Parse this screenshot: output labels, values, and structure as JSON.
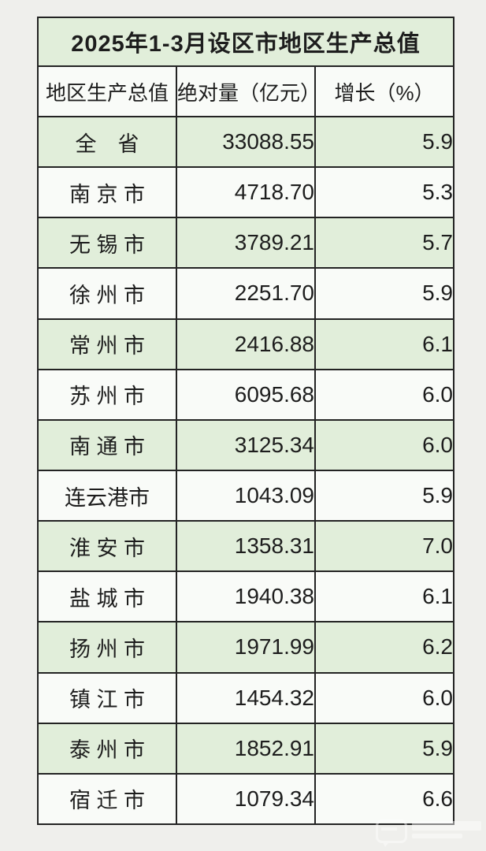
{
  "table": {
    "title": "2025年1-3月设区市地区生产总值",
    "columns": [
      "地区生产总值",
      "绝对量（亿元）",
      "增长（%）"
    ],
    "rows": [
      {
        "region": "全　省",
        "value": "33088.55",
        "growth": "5.9"
      },
      {
        "region": "南 京 市",
        "value": "4718.70",
        "growth": "5.3"
      },
      {
        "region": "无 锡 市",
        "value": "3789.21",
        "growth": "5.7"
      },
      {
        "region": "徐 州 市",
        "value": "2251.70",
        "growth": "5.9"
      },
      {
        "region": "常 州 市",
        "value": "2416.88",
        "growth": "6.1"
      },
      {
        "region": "苏 州 市",
        "value": "6095.68",
        "growth": "6.0"
      },
      {
        "region": "南 通 市",
        "value": "3125.34",
        "growth": "6.0"
      },
      {
        "region": "连云港市",
        "value": "1043.09",
        "growth": "5.9"
      },
      {
        "region": "淮 安 市",
        "value": "1358.31",
        "growth": "7.0"
      },
      {
        "region": "盐 城 市",
        "value": "1940.38",
        "growth": "6.1"
      },
      {
        "region": "扬 州 市",
        "value": "1971.99",
        "growth": "6.2"
      },
      {
        "region": "镇 江 市",
        "value": "1454.32",
        "growth": "6.0"
      },
      {
        "region": "泰 州 市",
        "value": "1852.91",
        "growth": "5.9"
      },
      {
        "region": "宿 迁 市",
        "value": "1079.34",
        "growth": "6.6"
      }
    ],
    "colors": {
      "row_green": "#e1eeda",
      "row_white": "#f9fbf8",
      "border": "#232323",
      "text": "#1d1d1d",
      "page_background": "#efefec"
    }
  },
  "chart_data": {
    "type": "table",
    "title": "2025年1-3月设区市地区生产总值",
    "columns": [
      "地区生产总值",
      "绝对量（亿元）",
      "增长（%）"
    ],
    "rows": [
      [
        "全省",
        33088.55,
        5.9
      ],
      [
        "南京市",
        4718.7,
        5.3
      ],
      [
        "无锡市",
        3789.21,
        5.7
      ],
      [
        "徐州市",
        2251.7,
        5.9
      ],
      [
        "常州市",
        2416.88,
        6.1
      ],
      [
        "苏州市",
        6095.68,
        6.0
      ],
      [
        "南通市",
        3125.34,
        6.0
      ],
      [
        "连云港市",
        1043.09,
        5.9
      ],
      [
        "淮安市",
        1358.31,
        7.0
      ],
      [
        "盐城市",
        1940.38,
        6.1
      ],
      [
        "扬州市",
        1971.99,
        6.2
      ],
      [
        "镇江市",
        1454.32,
        6.0
      ],
      [
        "泰州市",
        1852.91,
        5.9
      ],
      [
        "宿迁市",
        1079.34,
        6.6
      ]
    ]
  },
  "watermark": {
    "icon": "speech-bubble-icon"
  }
}
